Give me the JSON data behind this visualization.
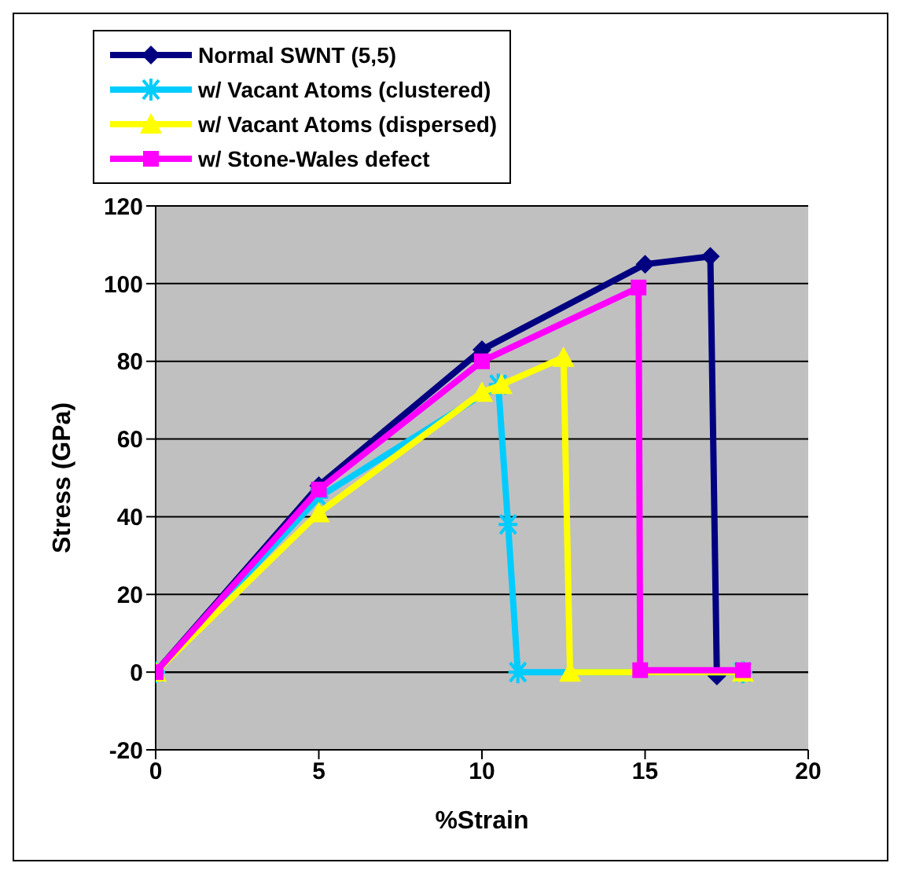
{
  "chart_data": {
    "type": "line",
    "xlabel": "%Strain",
    "ylabel": "Stress (GPa)",
    "xlim": [
      0,
      20
    ],
    "xticks": [
      0,
      5,
      10,
      15,
      20
    ],
    "ylim": [
      -20,
      120
    ],
    "yticks": [
      -20,
      0,
      20,
      40,
      60,
      80,
      100,
      120
    ],
    "grid": "y",
    "legend": "top",
    "series": [
      {
        "name": "Normal SWNT (5,5)",
        "color": "#000080",
        "marker": "diamond",
        "x": [
          0,
          5,
          10,
          15,
          17,
          17.2
        ],
        "values": [
          0,
          48,
          83,
          105,
          107,
          -1
        ]
      },
      {
        "name": "w/ Vacant Atoms (clustered)",
        "color": "#00ccff",
        "marker": "cross",
        "x": [
          0,
          5,
          10.5,
          10.8,
          11.1,
          18
        ],
        "values": [
          0,
          45,
          74,
          38,
          0,
          0
        ]
      },
      {
        "name": "w/ Vacant Atoms (dispersed)",
        "color": "#ffff00",
        "marker": "triangle",
        "x": [
          0,
          5,
          10,
          10.6,
          12.5,
          12.7,
          18
        ],
        "values": [
          0,
          41,
          72,
          74,
          81,
          0,
          0
        ]
      },
      {
        "name": "w/ Stone-Wales defect",
        "color": "#ff00ff",
        "marker": "square",
        "x": [
          0,
          5,
          10,
          14.8,
          14.85,
          18
        ],
        "values": [
          0,
          47,
          80,
          99,
          0.5,
          0.5
        ]
      }
    ]
  }
}
